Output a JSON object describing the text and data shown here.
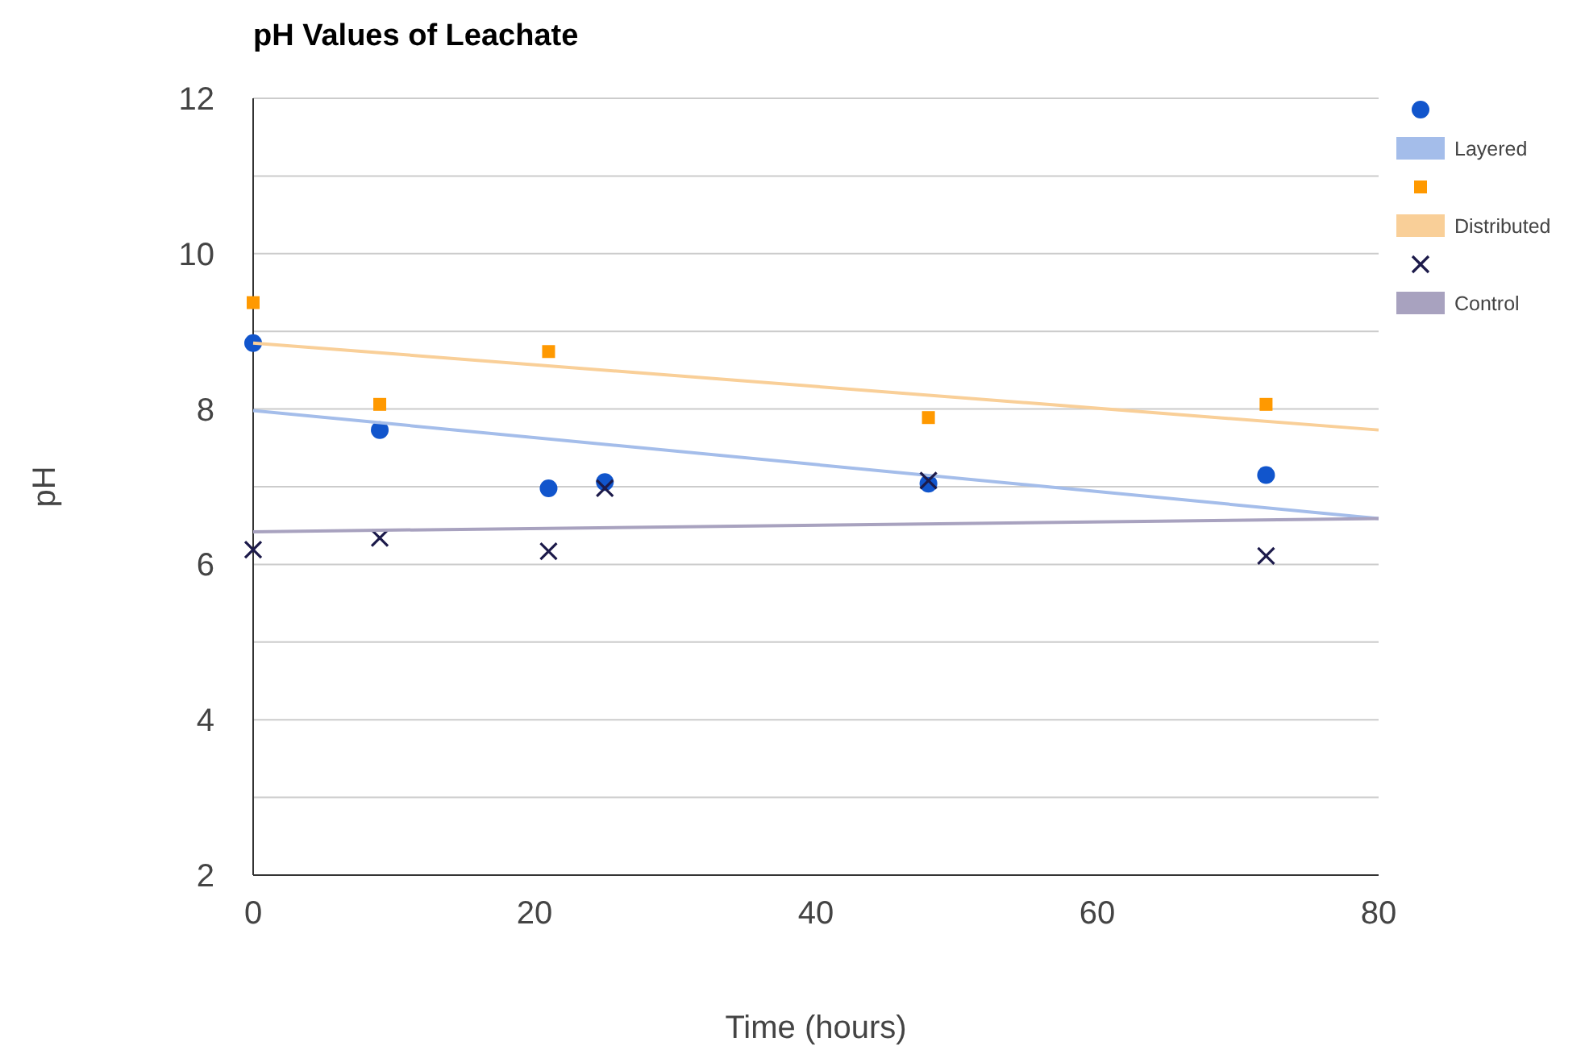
{
  "chart_data": {
    "type": "scatter",
    "title": "pH Values of Leachate",
    "xlabel": "Time (hours)",
    "ylabel": "pH",
    "xlim": [
      0,
      80
    ],
    "xticks": [
      0,
      20,
      40,
      60,
      80
    ],
    "ylim": [
      2,
      12
    ],
    "yticks": [
      2,
      {
        "value": 3,
        "label": null
      },
      4,
      {
        "value": 5,
        "label": null
      },
      6,
      {
        "value": 7,
        "label": null
      },
      8,
      {
        "value": 9,
        "label": null
      },
      10,
      {
        "value": 11,
        "label": null
      },
      12
    ],
    "grid": "y",
    "legend": "right",
    "series": [
      {
        "marker": "circle",
        "color": "#1155cc",
        "x": [
          0,
          9,
          21,
          25,
          48,
          72
        ],
        "values": [
          8.85,
          7.73,
          6.98,
          7.06,
          7.04,
          7.15
        ]
      },
      {
        "type": "line",
        "marker": "none",
        "name": "Layered",
        "color": "#a4bdea",
        "x": [
          0,
          80
        ],
        "values": [
          7.98,
          6.59
        ]
      },
      {
        "marker": "square",
        "color": "#ff9900",
        "x": [
          0,
          9,
          21,
          48,
          72
        ],
        "values": [
          9.37,
          8.06,
          8.74,
          7.89,
          8.06
        ]
      },
      {
        "type": "line",
        "marker": "none",
        "name": "Distributed",
        "color": "#f9cf98",
        "x": [
          0,
          80
        ],
        "values": [
          8.85,
          7.73
        ]
      },
      {
        "marker": "cross",
        "color": "#1c1a4a",
        "x": [
          0,
          9,
          21,
          25,
          48,
          72
        ],
        "values": [
          6.19,
          6.34,
          6.17,
          6.98,
          7.08,
          6.11
        ]
      },
      {
        "type": "line",
        "marker": "none",
        "name": "Control",
        "color": "#a8a2bf",
        "x": [
          0,
          80
        ],
        "values": [
          6.42,
          6.59
        ]
      }
    ]
  }
}
